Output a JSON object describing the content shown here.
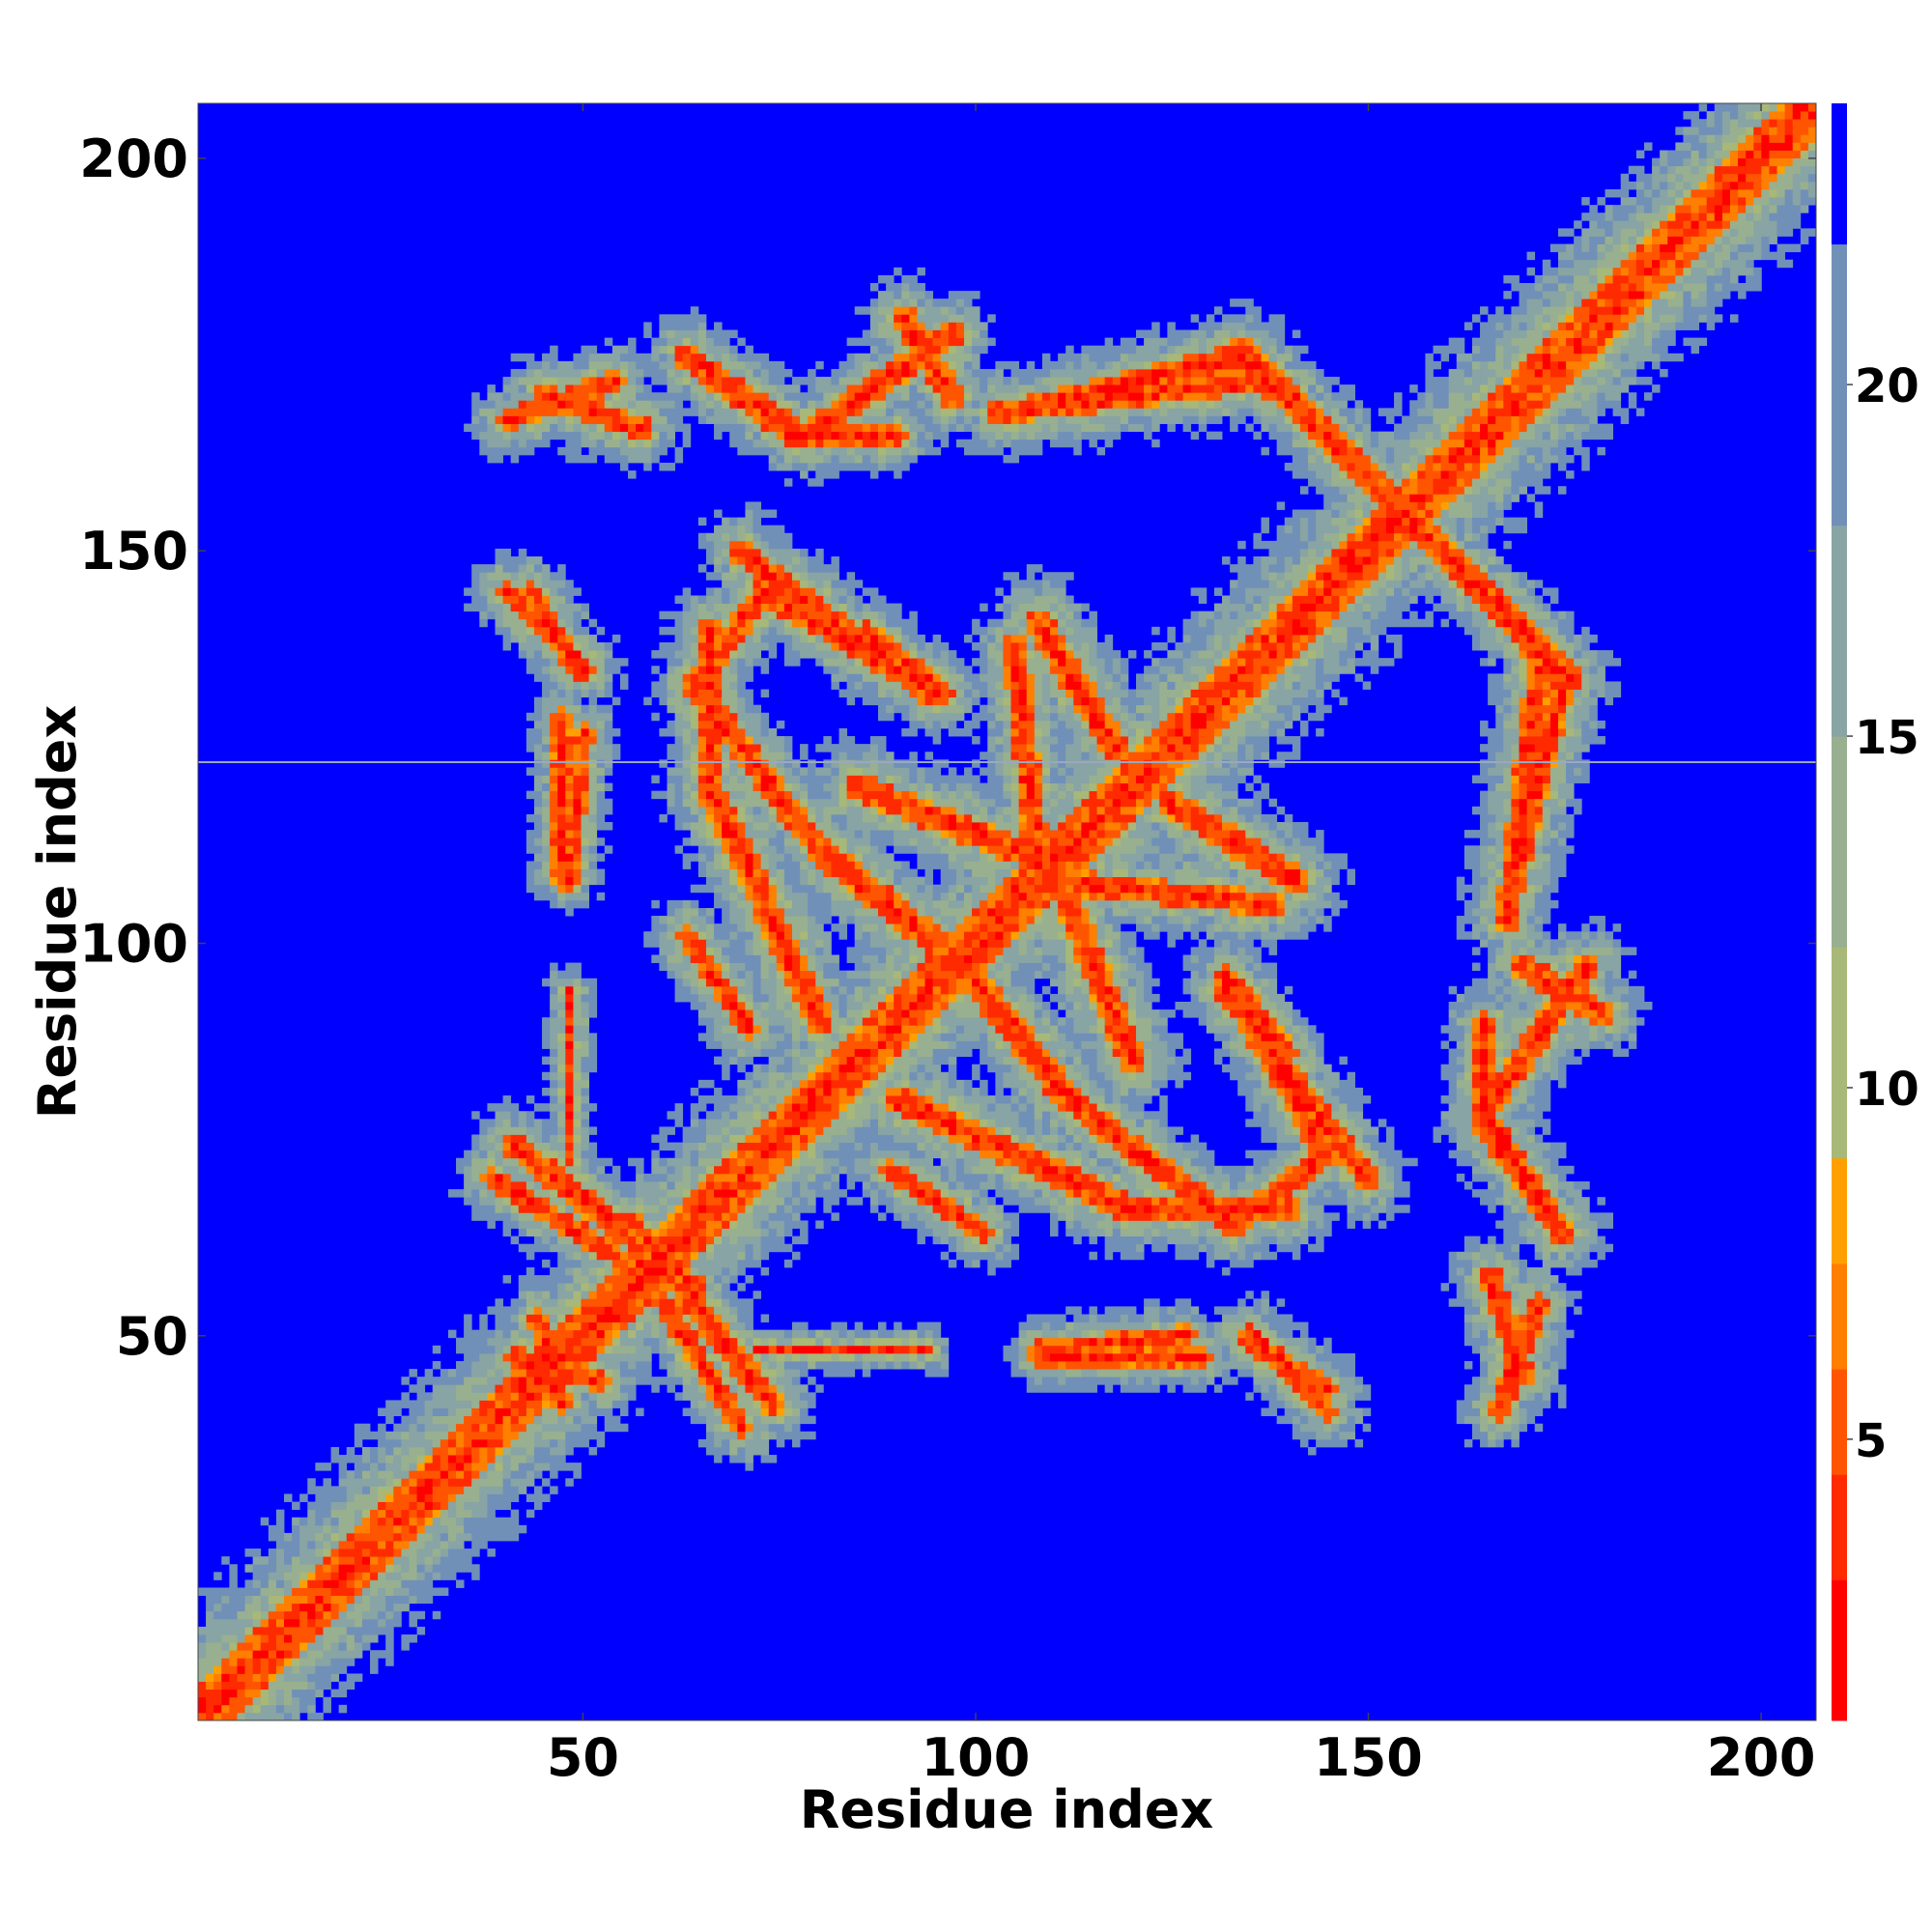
{
  "chart_data": {
    "type": "heatmap",
    "title": "",
    "xlabel": "Residue index",
    "ylabel": "Residue index",
    "xlim": [
      1,
      207
    ],
    "ylim": [
      1,
      207
    ],
    "xticks": [
      50,
      100,
      150,
      200
    ],
    "yticks": [
      50,
      100,
      150,
      200
    ],
    "colorbar": {
      "ticks": [
        5,
        10,
        15,
        20
      ],
      "range": [
        1,
        24
      ],
      "bands": [
        {
          "from": 1,
          "to": 3,
          "color": "#ff0000"
        },
        {
          "from": 3,
          "to": 4.5,
          "color": "#ff2a00"
        },
        {
          "from": 4.5,
          "to": 6,
          "color": "#ff5500"
        },
        {
          "from": 6,
          "to": 7.5,
          "color": "#ff7f00"
        },
        {
          "from": 7.5,
          "to": 9,
          "color": "#ffa000"
        },
        {
          "from": 9,
          "to": 12,
          "color": "#a8b878"
        },
        {
          "from": 12,
          "to": 15,
          "color": "#98b090"
        },
        {
          "from": 15,
          "to": 18,
          "color": "#88a4a4"
        },
        {
          "from": 18,
          "to": 22,
          "color": "#7090b8"
        },
        {
          "from": 22,
          "to": 24,
          "color": "#0000ff"
        }
      ]
    },
    "background_color": "#0000ff",
    "grid": false,
    "contact_segments": [
      {
        "x1": 1,
        "y1": 1,
        "x2": 207,
        "y2": 207,
        "halfwidth": 6.5,
        "kind": "diagonal"
      },
      {
        "x1": 56,
        "y1": 64,
        "x2": 74,
        "y2": 41,
        "halfwidth": 3.5
      },
      {
        "x1": 38,
        "y1": 70,
        "x2": 54,
        "y2": 60,
        "halfwidth": 3
      },
      {
        "x1": 41,
        "y1": 47,
        "x2": 52,
        "y2": 44,
        "halfwidth": 3
      },
      {
        "x1": 40,
        "y1": 167,
        "x2": 54,
        "y2": 172,
        "halfwidth": 3
      },
      {
        "x1": 63,
        "y1": 175,
        "x2": 78,
        "y2": 165,
        "halfwidth": 3.5
      },
      {
        "x1": 78,
        "y1": 165,
        "x2": 97,
        "y2": 178,
        "halfwidth": 3.5
      },
      {
        "x1": 105,
        "y1": 168,
        "x2": 133,
        "y2": 175,
        "halfwidth": 3.5
      },
      {
        "x1": 134,
        "y1": 176,
        "x2": 153,
        "y2": 157,
        "halfwidth": 3.5
      },
      {
        "x1": 156,
        "y1": 154,
        "x2": 175,
        "y2": 134,
        "halfwidth": 3.5
      },
      {
        "x1": 172,
        "y1": 135,
        "x2": 168,
        "y2": 103,
        "halfwidth": 3.5
      },
      {
        "x1": 170,
        "y1": 97,
        "x2": 180,
        "y2": 91,
        "halfwidth": 3.5
      },
      {
        "x1": 165,
        "y1": 90,
        "x2": 165,
        "y2": 77,
        "halfwidth": 3
      },
      {
        "x1": 165,
        "y1": 77,
        "x2": 175,
        "y2": 63,
        "halfwidth": 3.5
      },
      {
        "x1": 166,
        "y1": 57,
        "x2": 170,
        "y2": 45,
        "halfwidth": 3.5
      },
      {
        "x1": 40,
        "y1": 145,
        "x2": 50,
        "y2": 135,
        "halfwidth": 3
      },
      {
        "x1": 47,
        "y1": 129,
        "x2": 47,
        "y2": 108,
        "halfwidth": 2.5
      },
      {
        "x1": 70,
        "y1": 150,
        "x2": 94,
        "y2": 132,
        "halfwidth": 3.5
      },
      {
        "x1": 66,
        "y1": 140,
        "x2": 66,
        "y2": 120,
        "halfwidth": 3.5
      },
      {
        "x1": 66,
        "y1": 120,
        "x2": 80,
        "y2": 90,
        "halfwidth": 4
      },
      {
        "x1": 86,
        "y1": 140,
        "x2": 96,
        "y2": 132,
        "halfwidth": 3
      },
      {
        "x1": 108,
        "y1": 141,
        "x2": 118,
        "y2": 125,
        "halfwidth": 4
      },
      {
        "x1": 85,
        "y1": 120,
        "x2": 110,
        "y2": 110,
        "halfwidth": 4
      },
      {
        "x1": 110,
        "y1": 108,
        "x2": 138,
        "y2": 105,
        "halfwidth": 3.5
      },
      {
        "x1": 63,
        "y1": 101,
        "x2": 71,
        "y2": 89,
        "halfwidth": 3
      },
      {
        "x1": 100,
        "y1": 95,
        "x2": 112,
        "y2": 80,
        "halfwidth": 4
      },
      {
        "x1": 112,
        "y1": 80,
        "x2": 133,
        "y2": 64,
        "halfwidth": 3.5
      },
      {
        "x1": 133,
        "y1": 64,
        "x2": 145,
        "y2": 73,
        "halfwidth": 3.5
      },
      {
        "x1": 145,
        "y1": 73,
        "x2": 132,
        "y2": 95,
        "halfwidth": 3.5
      },
      {
        "x1": 72,
        "y1": 48,
        "x2": 94,
        "y2": 48,
        "halfwidth": 2
      },
      {
        "x1": 108,
        "y1": 48,
        "x2": 127,
        "y2": 50,
        "halfwidth": 2.5
      },
      {
        "x1": 135,
        "y1": 49,
        "x2": 145,
        "y2": 43,
        "halfwidth": 3
      }
    ]
  }
}
